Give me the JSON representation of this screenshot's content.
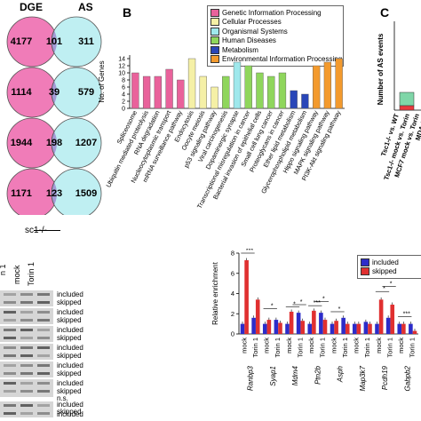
{
  "panel_letters": {
    "b": "B",
    "c": "C"
  },
  "venn": {
    "headers": {
      "left": "DGE",
      "right": "AS"
    },
    "rows": [
      {
        "left": "4177",
        "overlap": "101",
        "right": "311"
      },
      {
        "left": "1114",
        "overlap": "39",
        "right": "579"
      },
      {
        "left": "1944",
        "overlap": "198",
        "right": "1207"
      },
      {
        "left": "1171",
        "overlap": "123",
        "right": "1509"
      }
    ],
    "colors": {
      "left": "#f07cb8",
      "right": "#bfeff2",
      "overlap": "#a39bd5"
    }
  },
  "gel": {
    "genotype_label": "sc1-/-",
    "lane_labels": [
      "n 1",
      "mock",
      "Torin 1"
    ],
    "band_labels": [
      "included",
      "skipped",
      "included",
      "skipped",
      "included",
      "skipped",
      "included",
      "skipped",
      "included",
      "skipped",
      "included",
      "skipped",
      "n.s.",
      "included",
      "skipped",
      "included",
      "skipped"
    ]
  },
  "chart_data": [
    {
      "type": "bar",
      "ylabel": "No. of Genes",
      "ylim": [
        0,
        15
      ],
      "yticks": [
        0,
        2,
        4,
        6,
        8,
        10,
        12,
        14
      ],
      "categories": [
        "Spliceosome",
        "Ubiquitin mediated proteolysis",
        "RNA degradation",
        "Nucleocytoplasmic transport",
        "mRNA surveillance pathway",
        "Endocytosis",
        "Oocyte meiosis",
        "p53 signaling pathway",
        "Viral carcinogenesis",
        "Dopaminergic synapse",
        "Transcriptional misregulation in cancer",
        "Bacterial invasion of epithelial cells",
        "Small cell lung cancer",
        "Proteoglycans in cancer",
        "Ether lipid metabolism",
        "Glycerophospholipid metabolism",
        "Hippo signaling pathway",
        "MAPK signaling pathway",
        "PI3K-Akt signaling pathway"
      ],
      "values": [
        10,
        9,
        9,
        11,
        8,
        14,
        9,
        6,
        9,
        13,
        12,
        10,
        9,
        10,
        5,
        4,
        12,
        13,
        14
      ],
      "bar_groups": [
        "Genetic Information Processing",
        "Genetic Information Processing",
        "Genetic Information Processing",
        "Genetic Information Processing",
        "Genetic Information Processing",
        "Cellular Processes",
        "Cellular Processes",
        "Cellular Processes",
        "Human Diseases",
        "Organismal Systems",
        "Human Diseases",
        "Human Diseases",
        "Human Diseases",
        "Human Diseases",
        "Metabolism",
        "Metabolism",
        "Environmental Information Processing",
        "Environmental Information Processing",
        "Environmental Information Processing"
      ],
      "legend": [
        {
          "name": "Genetic Information Processing",
          "color": "#e9629b"
        },
        {
          "name": "Cellular Processes",
          "color": "#f5f0a6"
        },
        {
          "name": "Organismal Systems",
          "color": "#9fe8ec"
        },
        {
          "name": "Human Diseases",
          "color": "#8fd65c"
        },
        {
          "name": "Metabolism",
          "color": "#2946b8"
        },
        {
          "name": "Environmental Information Processing",
          "color": "#f39a2d"
        }
      ],
      "legend_placement": "top-right"
    },
    {
      "type": "bar",
      "ylabel": "Number of AS events",
      "ylim": [
        0,
        1000
      ],
      "yticks": [
        0,
        200,
        400,
        600,
        800,
        1000
      ],
      "categories": [
        "Tsc1-/- vs. WT",
        "Tsc1-/- mock vs. Torin",
        "MCF7 mock vs. Torin",
        "MDA-MB"
      ],
      "values": [
        200,
        null,
        null,
        null
      ],
      "segment_colors": [
        "#e8383d",
        "#7fd6a8"
      ]
    },
    {
      "type": "bar",
      "ylabel": "Relative enrichment",
      "ylim": [
        0,
        8
      ],
      "yticks": [
        0,
        2,
        4,
        6,
        8
      ],
      "categories": [
        "mock",
        "Torin 1",
        "mock",
        "Torin 1",
        "mock",
        "Torin 1",
        "mock",
        "Torin 1",
        "mock",
        "Torin 1",
        "mock",
        "Torin 1",
        "mock",
        "Torin 1",
        "mock",
        "Torin 1"
      ],
      "genes": [
        "Ranbp3",
        "Syap1",
        "Mdm4",
        "Ptn2b",
        "Asph",
        "Map3k7",
        "Pcdh19",
        "Gabpb2"
      ],
      "series": [
        {
          "name": "included",
          "color": "#2c2cc9",
          "values": [
            1.0,
            1.6,
            1.0,
            1.4,
            1.0,
            2.1,
            1.0,
            2.1,
            1.0,
            1.6,
            1.0,
            1.2,
            1.0,
            1.6,
            1.0,
            1.0
          ]
        },
        {
          "name": "skipped",
          "color": "#e03030",
          "values": [
            7.3,
            3.4,
            1.4,
            1.1,
            2.2,
            1.3,
            2.3,
            1.4,
            1.3,
            1.0,
            1.0,
            1.0,
            3.4,
            2.9,
            1.0,
            0.3
          ]
        }
      ],
      "significance": [
        "***",
        "*",
        "*",
        "*",
        "***",
        "*",
        "*",
        "*",
        "*",
        "***"
      ],
      "legend_placement": "top-right"
    }
  ]
}
